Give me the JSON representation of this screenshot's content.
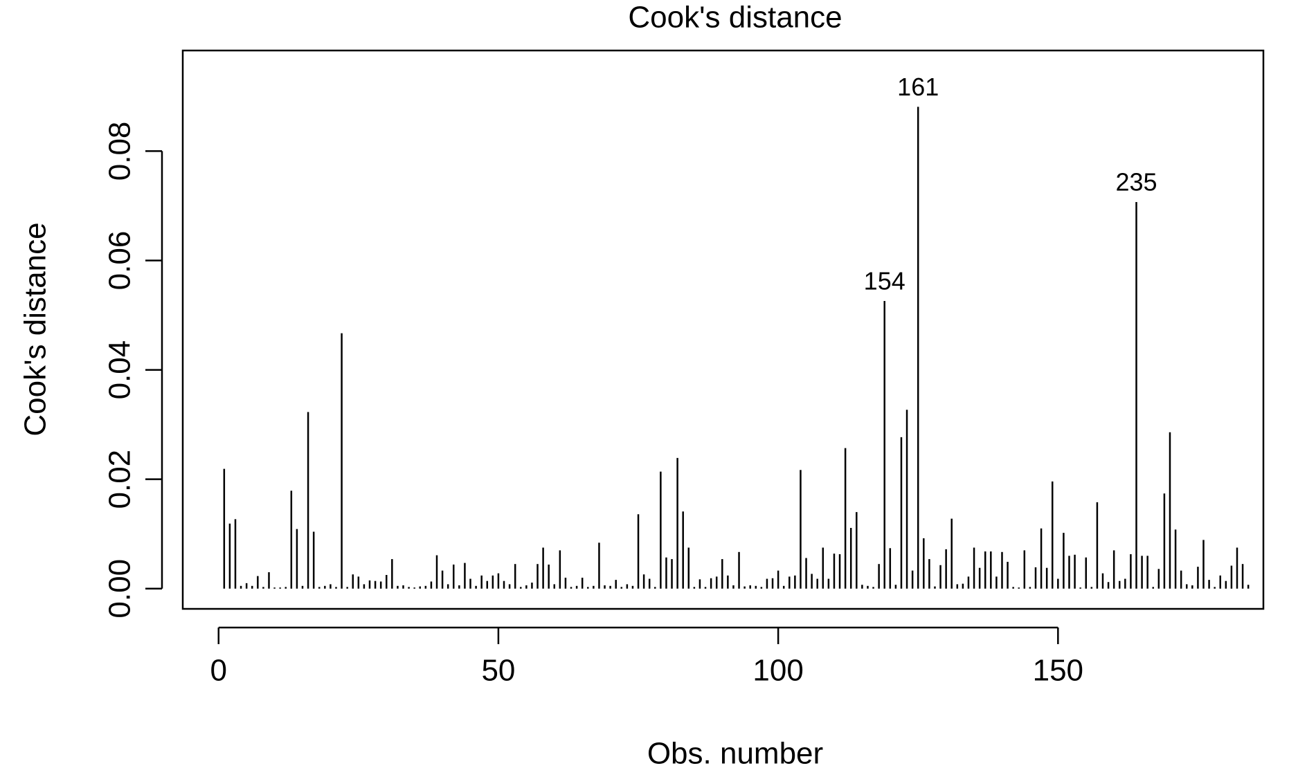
{
  "chart_data": {
    "type": "needle",
    "title": "Cook's distance",
    "x_label": "Obs. number",
    "y_label": "Cook's distance",
    "color": "#000000",
    "x": [
      1,
      2,
      3,
      4,
      5,
      6,
      7,
      8,
      9,
      10,
      11,
      12,
      13,
      14,
      15,
      16,
      17,
      18,
      19,
      20,
      21,
      22,
      23,
      24,
      25,
      26,
      27,
      28,
      29,
      30,
      31,
      32,
      33,
      34,
      35,
      36,
      37,
      38,
      39,
      40,
      41,
      42,
      43,
      44,
      45,
      46,
      47,
      48,
      49,
      50,
      51,
      52,
      53,
      54,
      55,
      56,
      57,
      58,
      59,
      60,
      61,
      62,
      63,
      64,
      65,
      66,
      67,
      68,
      69,
      70,
      71,
      72,
      73,
      74,
      75,
      76,
      77,
      78,
      79,
      80,
      81,
      82,
      83,
      84,
      85,
      86,
      87,
      88,
      89,
      90,
      91,
      92,
      93,
      94,
      95,
      96,
      97,
      98,
      99,
      100,
      101,
      102,
      103,
      104,
      105,
      106,
      107,
      108,
      109,
      110,
      111,
      112,
      113,
      114,
      115,
      116,
      117,
      118,
      119,
      120,
      121,
      122,
      123,
      124,
      125,
      126,
      127,
      128,
      129,
      130,
      131,
      132,
      133,
      134,
      135,
      136,
      137,
      138,
      139,
      140,
      141,
      142,
      143,
      144,
      145,
      146,
      147,
      148,
      149,
      150,
      151,
      152,
      153,
      154,
      155,
      156,
      157,
      158,
      159,
      160,
      161,
      162,
      163,
      164,
      165,
      166,
      167,
      168,
      169,
      170,
      171,
      172,
      173,
      174,
      175,
      176,
      177,
      178,
      179,
      180,
      181,
      182,
      183,
      184
    ],
    "values": [
      0.0219,
      0.0119,
      0.0127,
      0.0005,
      0.001,
      0.0005,
      0.0023,
      0.0003,
      0.003,
      0.0002,
      0.0002,
      0.0003,
      0.0179,
      0.0109,
      0.0005,
      0.0323,
      0.0104,
      0.0003,
      0.0005,
      0.0008,
      0.0003,
      0.0467,
      0.0003,
      0.0026,
      0.0022,
      0.0008,
      0.0015,
      0.0014,
      0.0013,
      0.0025,
      0.0054,
      0.0005,
      0.0006,
      0.0003,
      0.0002,
      0.0004,
      0.0005,
      0.0013,
      0.0061,
      0.0033,
      0.0008,
      0.0044,
      0.0006,
      0.0047,
      0.0018,
      0.0005,
      0.0024,
      0.0014,
      0.0024,
      0.0028,
      0.0014,
      0.0008,
      0.0045,
      0.0003,
      0.0006,
      0.0011,
      0.0045,
      0.0075,
      0.0044,
      0.0008,
      0.007,
      0.002,
      0.0003,
      0.0005,
      0.002,
      0.0003,
      0.0005,
      0.0084,
      0.0006,
      0.0005,
      0.0016,
      0.0003,
      0.0008,
      0.0005,
      0.0136,
      0.0026,
      0.0018,
      0.0003,
      0.0214,
      0.0057,
      0.0054,
      0.0239,
      0.0141,
      0.0075,
      0.0003,
      0.0017,
      0.0003,
      0.0019,
      0.0022,
      0.0054,
      0.0024,
      0.0006,
      0.0067,
      0.0004,
      0.0006,
      0.0005,
      0.0003,
      0.0018,
      0.0019,
      0.0033,
      0.0005,
      0.0022,
      0.0024,
      0.0217,
      0.0056,
      0.0027,
      0.0018,
      0.0075,
      0.0018,
      0.0064,
      0.0063,
      0.0257,
      0.0111,
      0.014,
      0.0007,
      0.0005,
      0.0003,
      0.0045,
      0.0526,
      0.0074,
      0.0007,
      0.0277,
      0.0327,
      0.0033,
      0.0881,
      0.0092,
      0.0054,
      0.0004,
      0.0043,
      0.0072,
      0.0128,
      0.0008,
      0.0009,
      0.0022,
      0.0075,
      0.0038,
      0.0068,
      0.0068,
      0.0022,
      0.0067,
      0.0049,
      0.0003,
      0.0002,
      0.007,
      0.0003,
      0.0039,
      0.011,
      0.0038,
      0.0196,
      0.0018,
      0.0102,
      0.006,
      0.0062,
      0.0002,
      0.0057,
      0.0003,
      0.0158,
      0.0028,
      0.0012,
      0.007,
      0.0014,
      0.0018,
      0.0063,
      0.0707,
      0.006,
      0.006,
      0.0003,
      0.0036,
      0.0174,
      0.0286,
      0.0108,
      0.0033,
      0.0008,
      0.0006,
      0.004,
      0.0089,
      0.0016,
      0.0003,
      0.0024,
      0.0014,
      0.0042,
      0.0075,
      0.0045,
      0.0007
    ],
    "annotations": [
      {
        "text": "154",
        "x": 119
      },
      {
        "text": "161",
        "x": 125
      },
      {
        "text": "235",
        "x": 164
      }
    ],
    "xlim": [
      -6.4,
      186.7
    ],
    "ylim": [
      -0.0037,
      0.0984
    ],
    "xticks": [
      0,
      50,
      100,
      150
    ],
    "yticks": [
      {
        "value": 0,
        "label": "0.00"
      },
      {
        "value": 0.02,
        "label": "0.02"
      },
      {
        "value": 0.04,
        "label": "0.04"
      },
      {
        "value": 0.06,
        "label": "0.06"
      },
      {
        "value": 0.08,
        "label": "0.08"
      }
    ]
  }
}
